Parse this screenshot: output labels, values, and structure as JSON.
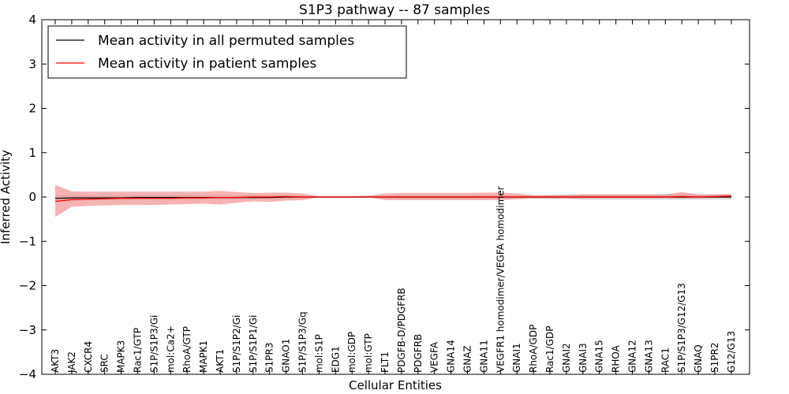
{
  "chart_data": {
    "type": "line",
    "title": "S1P3 pathway -- 87 samples",
    "xlabel": "Cellular Entities",
    "ylabel": "Inferred Activity",
    "ylim": [
      -4,
      4
    ],
    "yticks": [
      -4,
      -3,
      -2,
      -1,
      0,
      1,
      2,
      3,
      4
    ],
    "ytick_labels": [
      "−4",
      "−3",
      "−2",
      "−1",
      "0",
      "1",
      "2",
      "3",
      "4"
    ],
    "legend_position": "top-left",
    "categories": [
      "AKT3",
      "JAK2",
      "CXCR4",
      "SRC",
      "MAPK3",
      "Rac1/GTP",
      "S1P/S1P3/Gi",
      "mol:Ca2+",
      "RhoA/GTP",
      "MAPK1",
      "AKT1",
      "S1P/S1P2/Gi",
      "S1P/S1P1/Gi",
      "S1PR3",
      "GNAO1",
      "S1P/S1P3/Gq",
      "mol:S1P",
      "EDG1",
      "mol:GDP",
      "mol:GTP",
      "FLT1",
      "PDGFB-D/PDGFRB",
      "PDGFRB",
      "VEGFA",
      "GNA14",
      "GNAZ",
      "GNA11",
      "VEGFR1 homodimer/VEGFA homodimer",
      "GNAI1",
      "RhoA/GDP",
      "Rac1/GDP",
      "GNAI2",
      "GNAI3",
      "GNA15",
      "RHOA",
      "GNA12",
      "GNA13",
      "RAC1",
      "S1P/S1P3/G12/G13",
      "GNAQ",
      "S1PR2",
      "G12/G13"
    ],
    "series": [
      {
        "name": "Mean activity in all permuted samples",
        "color": "#000000",
        "band_color": "#bbbbbb",
        "values": [
          -0.03,
          -0.02,
          -0.02,
          -0.02,
          -0.02,
          -0.01,
          -0.01,
          -0.01,
          -0.01,
          -0.01,
          -0.01,
          -0.01,
          -0.01,
          -0.01,
          0.0,
          0.0,
          0.0,
          0.0,
          0.0,
          0.0,
          0.0,
          0.0,
          0.0,
          0.0,
          0.0,
          0.0,
          0.0,
          0.0,
          0.0,
          0.0,
          0.0,
          0.0,
          0.0,
          0.0,
          0.0,
          0.0,
          0.0,
          0.0,
          0.0,
          0.0,
          0.0,
          0.0
        ],
        "lower": [
          -0.1,
          -0.08,
          -0.07,
          -0.07,
          -0.07,
          -0.06,
          -0.06,
          -0.06,
          -0.06,
          -0.06,
          -0.06,
          -0.05,
          -0.05,
          -0.05,
          -0.04,
          -0.03,
          -0.02,
          -0.02,
          -0.02,
          -0.02,
          -0.03,
          -0.04,
          -0.04,
          -0.04,
          -0.04,
          -0.04,
          -0.04,
          -0.04,
          -0.04,
          -0.04,
          -0.05,
          -0.05,
          -0.06,
          -0.06,
          -0.06,
          -0.06,
          -0.06,
          -0.06,
          -0.06,
          -0.06,
          -0.06,
          -0.06
        ],
        "upper": [
          0.04,
          0.04,
          0.04,
          0.04,
          0.04,
          0.04,
          0.04,
          0.04,
          0.04,
          0.04,
          0.04,
          0.04,
          0.04,
          0.04,
          0.03,
          0.03,
          0.02,
          0.02,
          0.02,
          0.02,
          0.03,
          0.04,
          0.04,
          0.04,
          0.04,
          0.04,
          0.04,
          0.04,
          0.04,
          0.04,
          0.05,
          0.05,
          0.06,
          0.06,
          0.06,
          0.06,
          0.06,
          0.06,
          0.06,
          0.06,
          0.06,
          0.06
        ]
      },
      {
        "name": "Mean activity in patient samples",
        "color": "#ff0000",
        "band_color": "#f08080",
        "values": [
          -0.1,
          -0.06,
          -0.05,
          -0.04,
          -0.03,
          -0.03,
          -0.03,
          -0.03,
          -0.02,
          -0.02,
          -0.01,
          -0.01,
          0.0,
          0.0,
          0.01,
          0.0,
          0.0,
          0.0,
          0.0,
          0.0,
          0.0,
          0.0,
          0.0,
          0.0,
          0.0,
          0.0,
          0.0,
          0.0,
          0.0,
          0.0,
          0.0,
          0.0,
          0.0,
          0.0,
          0.0,
          0.0,
          0.0,
          0.0,
          0.01,
          0.0,
          0.01,
          0.02
        ],
        "lower": [
          -0.45,
          -0.22,
          -0.2,
          -0.19,
          -0.18,
          -0.18,
          -0.18,
          -0.17,
          -0.16,
          -0.15,
          -0.17,
          -0.13,
          -0.1,
          -0.11,
          -0.08,
          -0.07,
          -0.01,
          -0.01,
          -0.01,
          -0.01,
          -0.07,
          -0.07,
          -0.07,
          -0.07,
          -0.07,
          -0.07,
          -0.07,
          -0.07,
          -0.05,
          -0.03,
          -0.03,
          -0.03,
          -0.03,
          -0.03,
          -0.03,
          -0.03,
          -0.03,
          -0.03,
          -0.03,
          -0.03,
          -0.02,
          -0.02
        ],
        "upper": [
          0.27,
          0.13,
          0.12,
          0.12,
          0.12,
          0.12,
          0.12,
          0.12,
          0.12,
          0.12,
          0.14,
          0.11,
          0.09,
          0.1,
          0.1,
          0.08,
          0.02,
          0.02,
          0.02,
          0.03,
          0.08,
          0.09,
          0.09,
          0.09,
          0.09,
          0.09,
          0.1,
          0.1,
          0.08,
          0.04,
          0.04,
          0.05,
          0.06,
          0.06,
          0.06,
          0.06,
          0.06,
          0.06,
          0.11,
          0.06,
          0.06,
          0.07
        ]
      }
    ]
  }
}
